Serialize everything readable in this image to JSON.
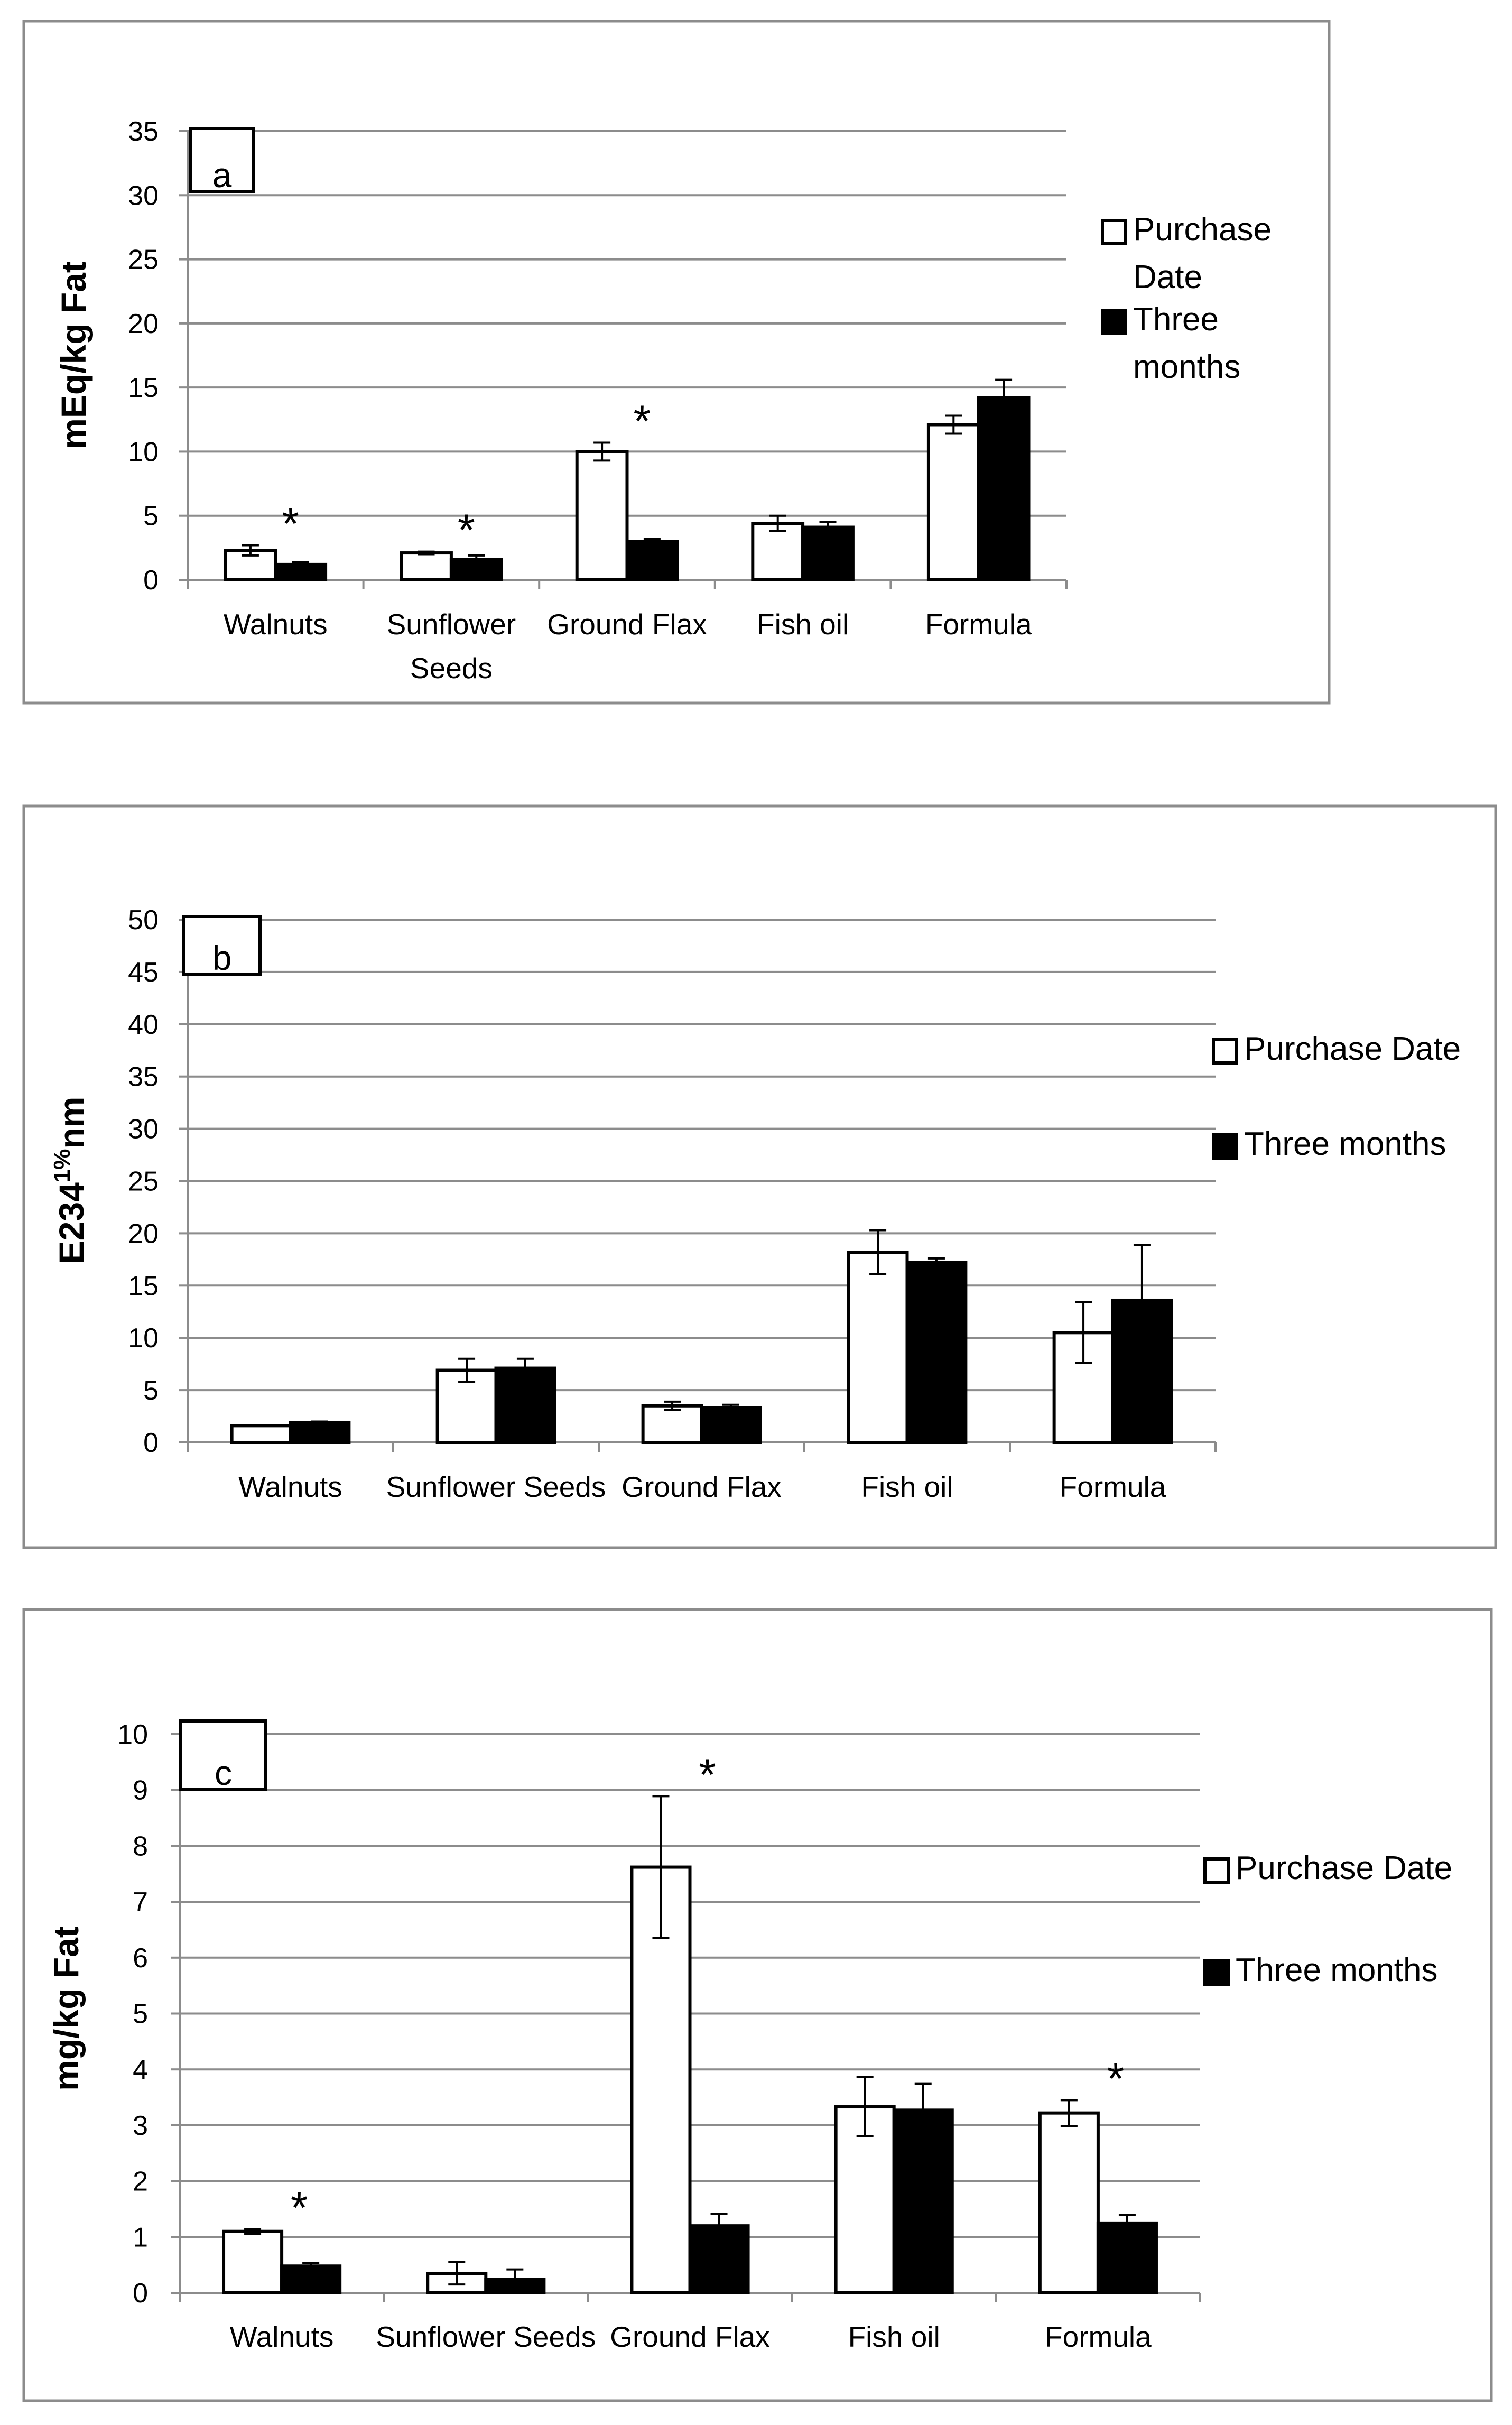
{
  "figure": {
    "legend": {
      "purchase_label": "Purchase Date",
      "three_label": "Three months"
    },
    "colors": {
      "purchase_fill": "#ffffff",
      "three_fill": "#000000",
      "stroke": "#000000",
      "grid": "#8c8c8c",
      "frame": "#8c8c8c"
    }
  },
  "chart_data": [
    {
      "type": "bar",
      "panel": "a",
      "title": "",
      "xlabel": "",
      "ylabel": "mEq/kg Fat",
      "ylim": [
        0,
        35
      ],
      "ytick_step": 5,
      "grid": true,
      "legend_position": "right",
      "categories": [
        "Walnuts",
        "Sunflower Seeds",
        "Ground Flax",
        "Fish oil",
        "Formula"
      ],
      "series": [
        {
          "name": "Purchase Date",
          "values": [
            2.3,
            2.1,
            10.0,
            4.4,
            12.1
          ],
          "errors": [
            0.4,
            0.1,
            0.7,
            0.6,
            0.7
          ]
        },
        {
          "name": "Three months",
          "values": [
            1.2,
            1.6,
            3.0,
            4.1,
            14.2
          ],
          "errors": [
            0.2,
            0.3,
            0.2,
            0.4,
            1.4
          ]
        }
      ],
      "significance": [
        "*",
        "*",
        "*",
        "",
        ""
      ]
    },
    {
      "type": "bar",
      "panel": "b",
      "title": "",
      "xlabel": "",
      "ylabel": "E234",
      "ylabel_superscript": "1%",
      "ylabel_suffix": "nm",
      "ylim": [
        0,
        50
      ],
      "ytick_step": 5,
      "grid": true,
      "legend_position": "right",
      "categories": [
        "Walnuts",
        "Sunflower Seeds",
        "Ground Flax",
        "Fish oil",
        "Formula"
      ],
      "series": [
        {
          "name": "Purchase Date",
          "values": [
            1.6,
            6.9,
            3.5,
            18.2,
            10.5
          ],
          "errors": [
            0.0,
            1.1,
            0.4,
            2.1,
            2.9
          ]
        },
        {
          "name": "Three months",
          "values": [
            1.9,
            7.1,
            3.3,
            17.2,
            13.6
          ],
          "errors": [
            0.1,
            0.9,
            0.3,
            0.4,
            5.3
          ]
        }
      ],
      "significance": [
        "",
        "",
        "",
        "",
        ""
      ]
    },
    {
      "type": "bar",
      "panel": "c",
      "title": "",
      "xlabel": "",
      "ylabel": "mg/kg Fat",
      "ylim": [
        0,
        10
      ],
      "ytick_step": 1,
      "grid": true,
      "legend_position": "right",
      "categories": [
        "Walnuts",
        "Sunflower Seeds",
        "Ground Flax",
        "Fish oil",
        "Formula"
      ],
      "series": [
        {
          "name": "Purchase Date",
          "values": [
            1.1,
            0.35,
            7.62,
            3.33,
            3.22
          ],
          "errors": [
            0.04,
            0.2,
            1.27,
            0.53,
            0.23
          ]
        },
        {
          "name": "Three months",
          "values": [
            0.48,
            0.24,
            1.2,
            3.27,
            1.25
          ],
          "errors": [
            0.05,
            0.18,
            0.21,
            0.47,
            0.15
          ]
        }
      ],
      "significance": [
        "*",
        "",
        "*",
        "",
        "*"
      ]
    }
  ]
}
